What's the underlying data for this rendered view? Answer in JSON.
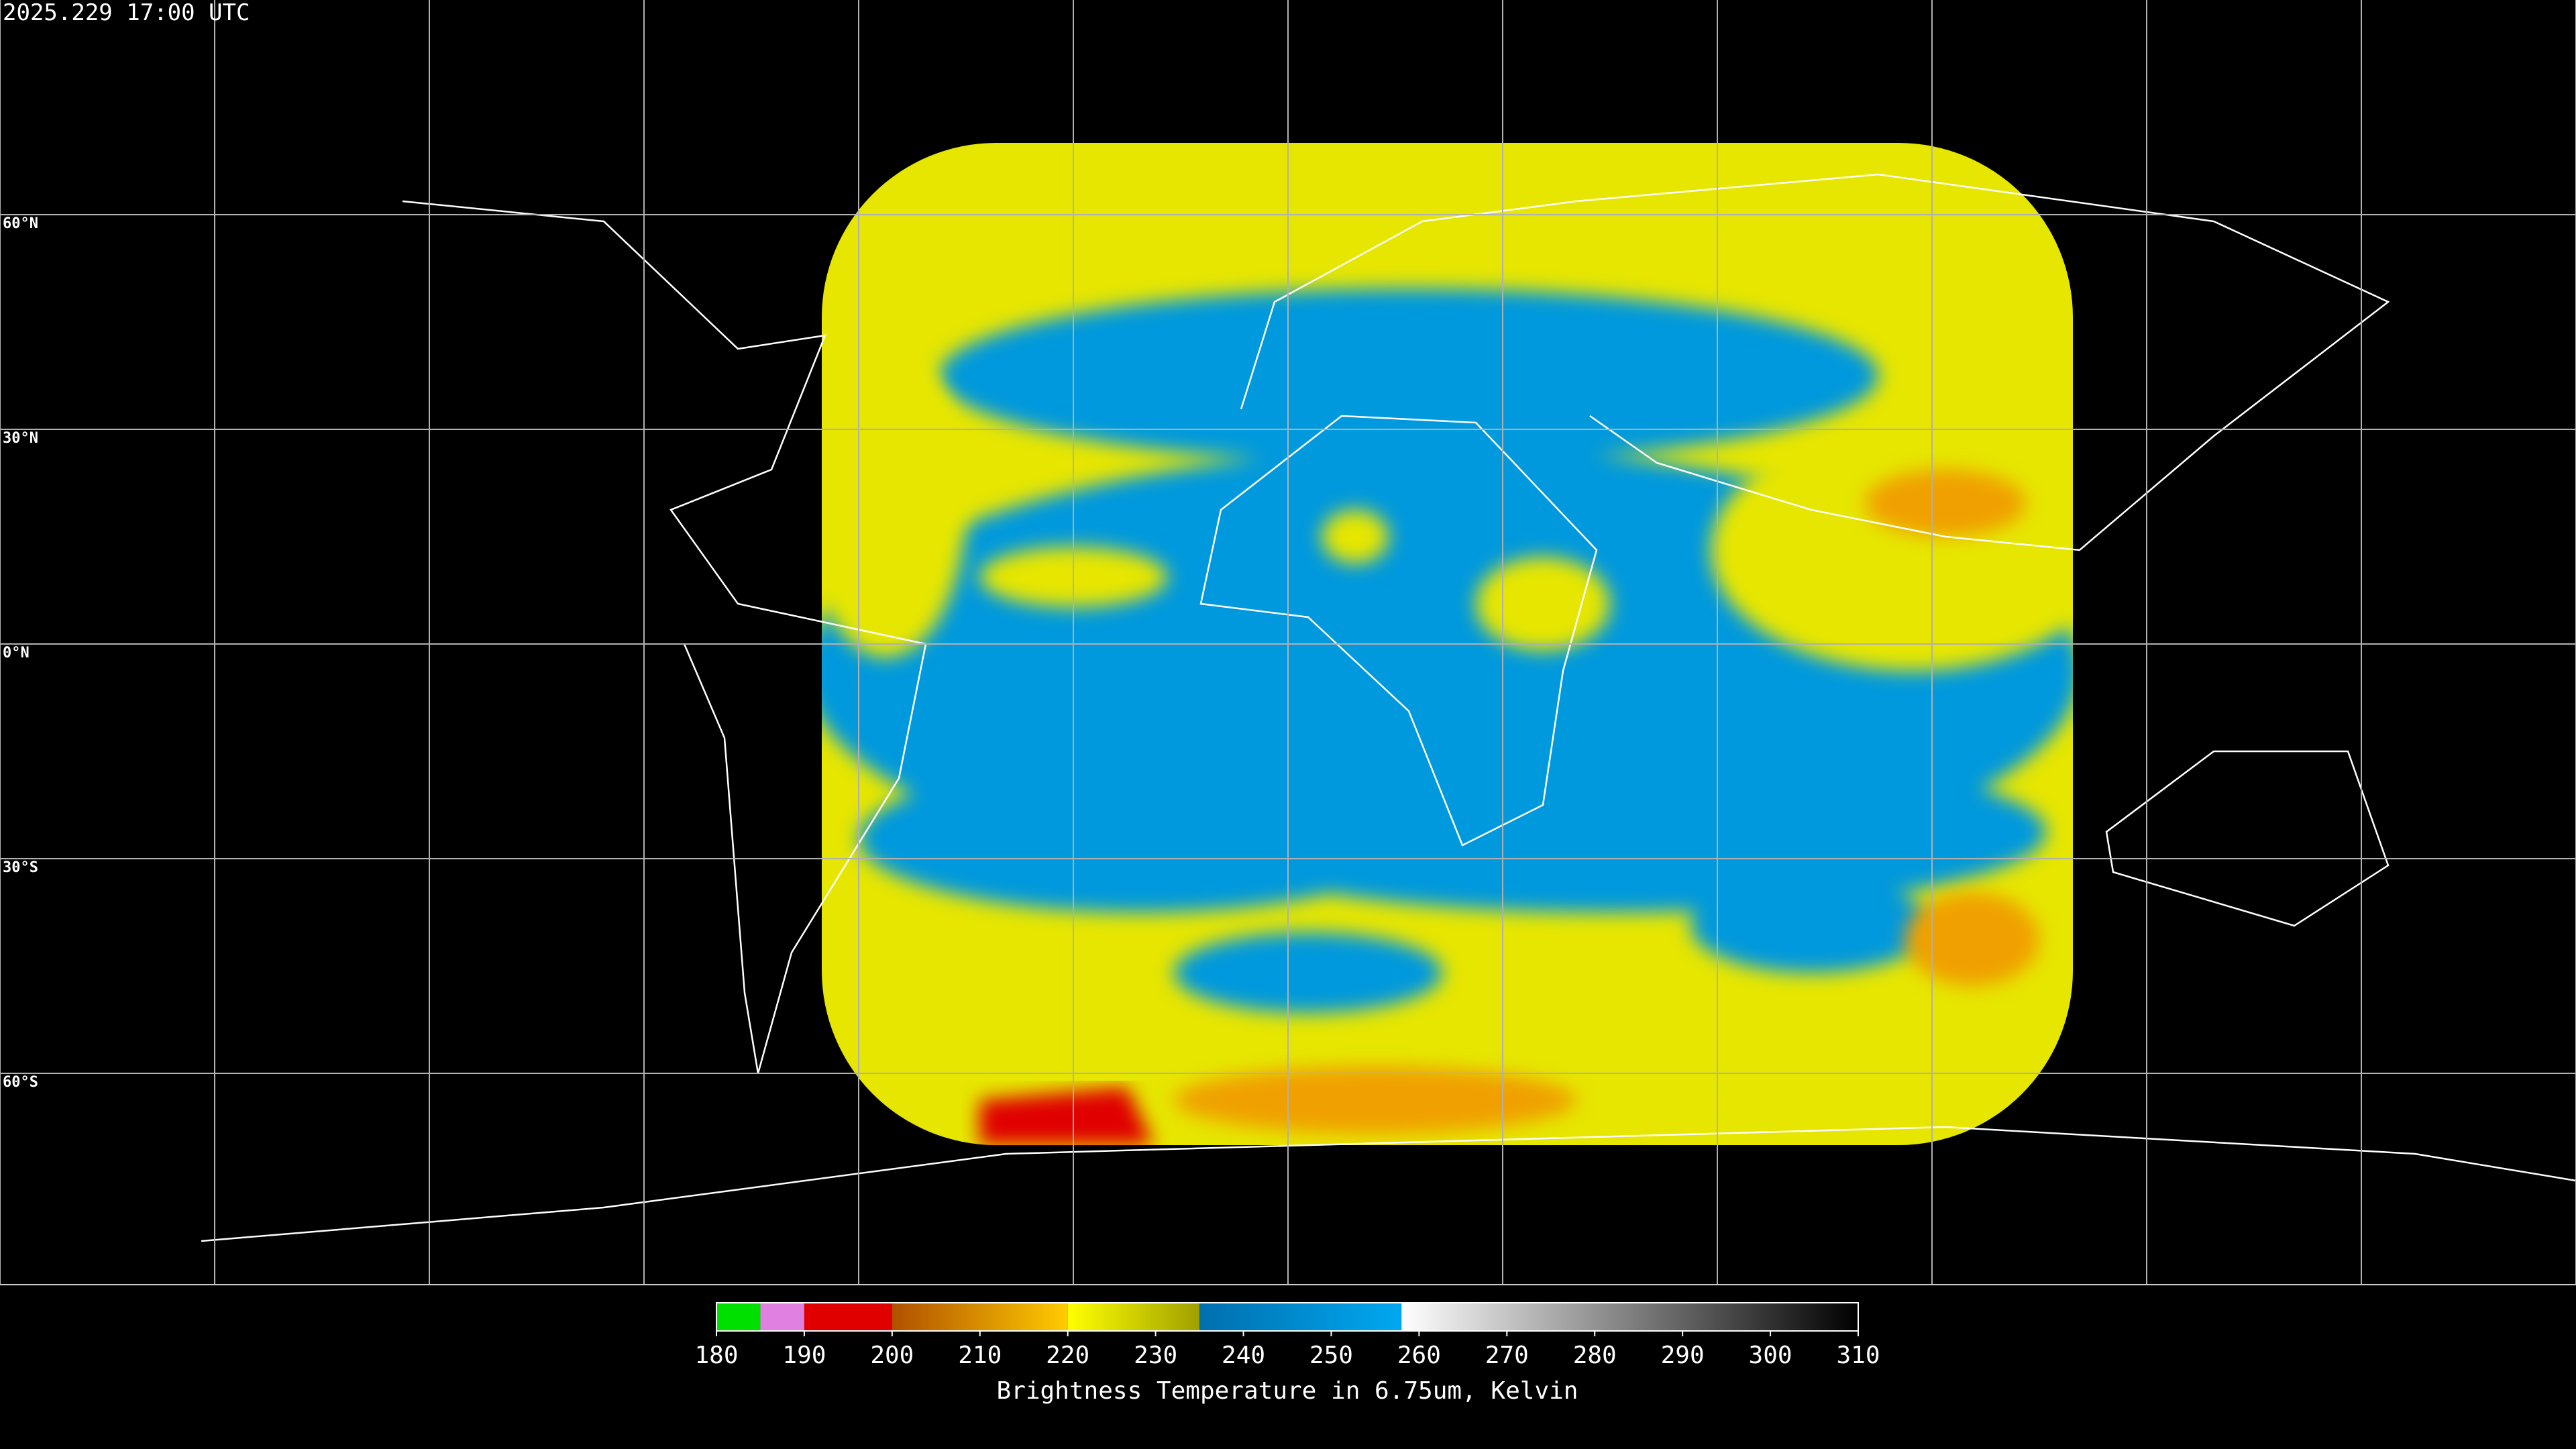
{
  "header": {
    "title": "2025.229 17:00 UTC"
  },
  "map": {
    "lat_labels": [
      "60°N",
      "30°N",
      "0°N",
      "30°S",
      "60°S"
    ]
  },
  "colorbar": {
    "range": [
      180,
      310
    ],
    "ticks": [
      180,
      190,
      200,
      210,
      220,
      230,
      240,
      250,
      260,
      270,
      280,
      290,
      300,
      310
    ],
    "stops": [
      {
        "value": 180,
        "color": "#00e000"
      },
      {
        "value": 185,
        "color": "#00e000"
      },
      {
        "value": 185,
        "color": "#e080e0"
      },
      {
        "value": 190,
        "color": "#e080e0"
      },
      {
        "value": 190,
        "color": "#e00000"
      },
      {
        "value": 200,
        "color": "#e00000"
      },
      {
        "value": 200,
        "color": "#b05000"
      },
      {
        "value": 220,
        "color": "#ffcc00"
      },
      {
        "value": 220,
        "color": "#ffff00"
      },
      {
        "value": 235,
        "color": "#a0a000"
      },
      {
        "value": 235,
        "color": "#006fae"
      },
      {
        "value": 258,
        "color": "#00a8f0"
      },
      {
        "value": 258,
        "color": "#ffffff"
      },
      {
        "value": 310,
        "color": "#000000"
      }
    ],
    "label": "Brightness Temperature in 6.75um, Kelvin"
  }
}
